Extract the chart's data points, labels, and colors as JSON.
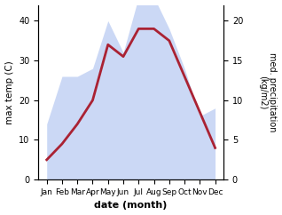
{
  "months": [
    "Jan",
    "Feb",
    "Mar",
    "Apr",
    "May",
    "Jun",
    "Jul",
    "Aug",
    "Sep",
    "Oct",
    "Nov",
    "Dec"
  ],
  "temp_max": [
    5,
    9,
    14,
    20,
    34,
    31,
    38,
    38,
    35,
    26,
    17,
    8
  ],
  "precipitation": [
    7,
    13,
    13,
    14,
    20,
    16,
    23,
    23,
    19,
    14,
    8,
    9
  ],
  "temp_ylim": [
    0,
    44
  ],
  "precip_ylim": [
    0,
    22
  ],
  "temp_yticks": [
    0,
    10,
    20,
    30,
    40
  ],
  "precip_yticks": [
    0,
    5,
    10,
    15,
    20
  ],
  "fill_color": "#b0c4f0",
  "fill_alpha": 0.65,
  "line_color": "#aa2233",
  "line_width": 2.0,
  "xlabel": "date (month)",
  "ylabel_left": "max temp (C)",
  "ylabel_right": "med. precipitation\n(kg/m2)",
  "bg_color": "#ffffff",
  "scale_factor": 2.0
}
